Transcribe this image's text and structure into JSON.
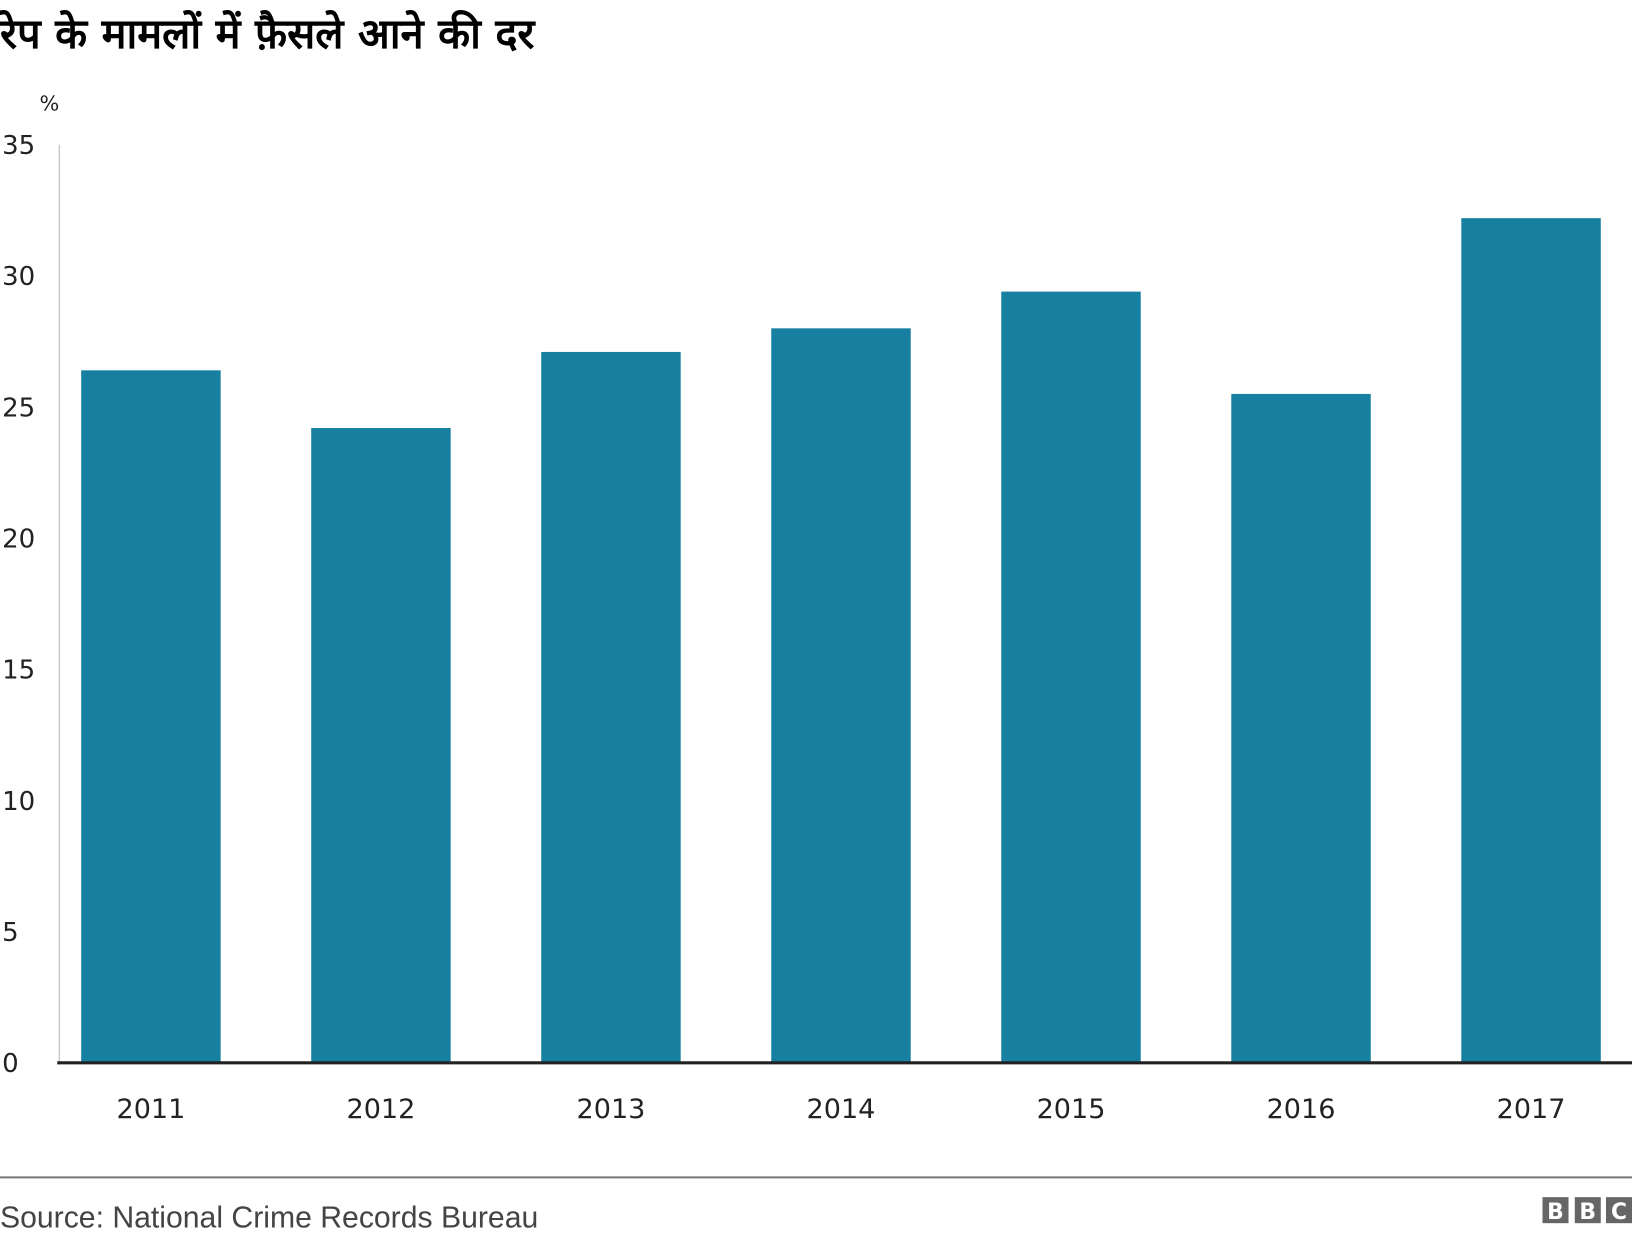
{
  "chart_data": {
    "type": "bar",
    "title": "रेप के मामलों में फ़ैसले आने की दर",
    "ylabel": "%",
    "xlabel": "",
    "categories": [
      "2011",
      "2012",
      "2013",
      "2014",
      "2015",
      "2016",
      "2017"
    ],
    "values": [
      26.4,
      24.2,
      27.1,
      28.0,
      29.4,
      25.5,
      32.2
    ],
    "ylim": [
      0,
      35
    ],
    "yticks": [
      0,
      5,
      10,
      15,
      20,
      25,
      30,
      35
    ],
    "grid": false,
    "bar_color": "#1780a1"
  },
  "footer": {
    "source": "Source:  National  Crime  Records  Bureau",
    "logo": "BBC"
  }
}
